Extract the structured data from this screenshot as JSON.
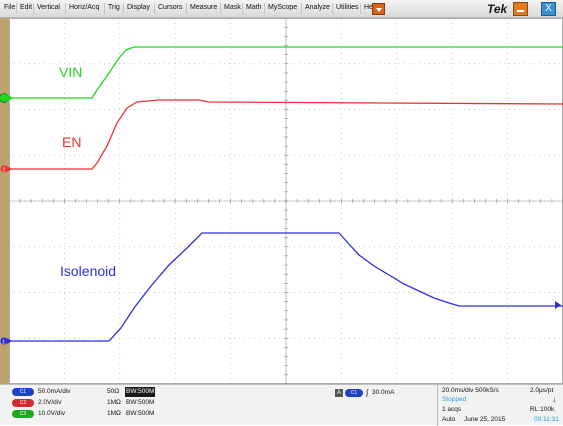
{
  "menubar": {
    "items": [
      "File",
      "Edit",
      "Vertical",
      "Horiz/Acq",
      "Trig",
      "Display",
      "Cursors",
      "Measure",
      "Mask",
      "Math",
      "MyScope",
      "Analyze",
      "Utilities",
      "Help"
    ],
    "brand": "Tek",
    "close_glyph": "X",
    "icons": [
      "menu-dropdown-icon",
      "minimize-icon",
      "close-icon"
    ]
  },
  "waveforms": {
    "labels": {
      "vin": "VIN",
      "en": "EN",
      "isolenoid": "Isolenoid"
    },
    "colors": {
      "vin": "#22d622",
      "en": "#e83232",
      "isolenoid": "#2f2fd8"
    },
    "markers": {
      "ch1": "1",
      "ch2": "2",
      "ch3": "3"
    }
  },
  "channels": [
    {
      "badge": "C1",
      "scale": "50.0mA/div",
      "impedance": "50Ω",
      "bw": "BW:500M",
      "color": "#1f3fc4"
    },
    {
      "badge": "C2",
      "scale": "2.0V/div",
      "impedance": "1MΩ",
      "bw": "BW:500M",
      "color": "#d62a2a"
    },
    {
      "badge": "C3",
      "scale": "10.0V/div",
      "impedance": "1MΩ",
      "bw": "BW:500M",
      "color": "#1fa81f"
    }
  ],
  "trigger": {
    "source": "A",
    "badge": "C1",
    "slope": "∫",
    "level": "30.0mA"
  },
  "acquisition": {
    "timebase": "20.0ms/div 500kS/s",
    "resolution": "2.0µs/pt",
    "state": "Stopped",
    "acqs": "1 acqs",
    "record_length": "RL:100k",
    "mode": "Auto",
    "date": "June 25, 2015",
    "time": "09:11:31"
  }
}
